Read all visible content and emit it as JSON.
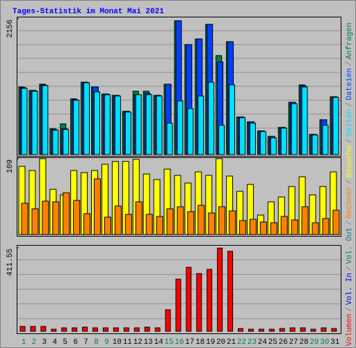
{
  "chart_data": [
    {
      "type": "bar",
      "title": "Tages-Statistik im Monat Mai 2021",
      "ylim": [
        0,
        2156
      ],
      "yticks": [
        2156
      ],
      "series": [
        {
          "name": "Anfragen",
          "color": "#008040",
          "values": [
            1073,
            1018,
            1117,
            409,
            487,
            885,
            1150,
            1073,
            962,
            940,
            686,
            1006,
            1006,
            940,
            1117,
            2124,
            1747,
            1836,
            2068,
            1571,
            1792,
            597,
            520,
            376,
            288,
            431,
            830,
            1106,
            321,
            553,
            918
          ]
        },
        {
          "name": "Dateien",
          "color": "#0040ff",
          "values": [
            1062,
            1018,
            1106,
            398,
            409,
            874,
            1150,
            1073,
            962,
            940,
            686,
            951,
            973,
            940,
            1117,
            2124,
            1747,
            1836,
            2068,
            1471,
            1792,
            597,
            520,
            376,
            288,
            431,
            830,
            1095,
            321,
            553,
            918
          ]
        },
        {
          "name": "Seiten",
          "color": "#00e0ff",
          "values": [
            1051,
            1006,
            1095,
            387,
            398,
            863,
            1139,
            995,
            951,
            929,
            675,
            951,
            951,
            929,
            498,
            852,
            730,
            929,
            1150,
            465,
            1106,
            586,
            498,
            365,
            265,
            420,
            807,
            1073,
            310,
            465,
            907
          ]
        }
      ]
    },
    {
      "type": "bar",
      "ylim": [
        0,
        109
      ],
      "yticks": [
        109
      ],
      "series": [
        {
          "name": "Besuche",
          "color": "#ffff00",
          "values": [
            98,
            92,
            109,
            65,
            57,
            92,
            89,
            92,
            101,
            105,
            105,
            108,
            87,
            79,
            94,
            85,
            74,
            90,
            85,
            109,
            84,
            62,
            72,
            28,
            47,
            54,
            69,
            83,
            57,
            69,
            90
          ]
        },
        {
          "name": "Rechner",
          "color": "#ff8000",
          "values": [
            45,
            37,
            48,
            47,
            60,
            49,
            30,
            80,
            25,
            41,
            29,
            47,
            29,
            26,
            37,
            40,
            33,
            42,
            31,
            40,
            34,
            20,
            22,
            18,
            17,
            26,
            21,
            40,
            17,
            23,
            35
          ]
        }
      ]
    },
    {
      "type": "bar",
      "ylim": [
        0,
        411.55
      ],
      "yticks": [
        411.55
      ],
      "categories": [
        "1",
        "2",
        "3",
        "4",
        "5",
        "6",
        "7",
        "8",
        "9",
        "10",
        "11",
        "12",
        "13",
        "14",
        "15",
        "16",
        "17",
        "18",
        "19",
        "20",
        "21",
        "22",
        "23",
        "24",
        "25",
        "26",
        "27",
        "28",
        "29",
        "30",
        "31"
      ],
      "category_colors": [
        "#008040",
        "#008040",
        "#000000",
        "#000000",
        "#000000",
        "#000000",
        "#000000",
        "#008040",
        "#008040",
        "#000000",
        "#000000",
        "#000000",
        "#000000",
        "#000000",
        "#008040",
        "#008040",
        "#000000",
        "#000000",
        "#000000",
        "#000000",
        "#000000",
        "#008040",
        "#008040",
        "#000000",
        "#000000",
        "#000000",
        "#000000",
        "#000000",
        "#008040",
        "#008040",
        "#000000"
      ],
      "series": [
        {
          "name": "Volumen",
          "color": "#ff0000",
          "values": [
            24.0,
            24.0,
            24.0,
            10.3,
            17.1,
            17.1,
            20.6,
            17.1,
            17.1,
            17.1,
            17.1,
            17.1,
            20.6,
            17.1,
            106.3,
            257.2,
            315.5,
            284.7,
            305.3,
            410,
            394.4,
            13.7,
            10.3,
            10.3,
            10.3,
            13.7,
            17.1,
            17.1,
            10.3,
            17.1,
            13.7
          ]
        }
      ],
      "legend_extra": [
        {
          "name": "Vol. In",
          "color": "#0000ff"
        },
        {
          "name": "Vol. Out",
          "color": "#008080"
        }
      ]
    }
  ],
  "legend_separator": "/"
}
